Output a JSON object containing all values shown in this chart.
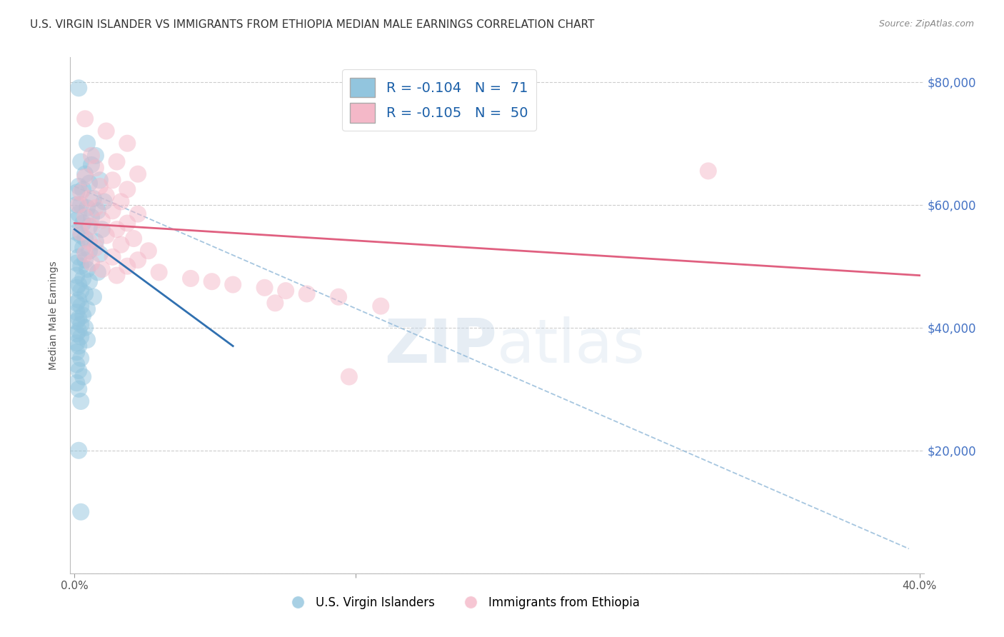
{
  "title": "U.S. VIRGIN ISLANDER VS IMMIGRANTS FROM ETHIOPIA MEDIAN MALE EARNINGS CORRELATION CHART",
  "source": "Source: ZipAtlas.com",
  "ylabel": "Median Male Earnings",
  "xlabel_ticks": [
    "0.0%",
    "",
    "40.0%"
  ],
  "xlabel_vals": [
    0.0,
    0.133,
    0.4
  ],
  "ylabel_ticks": [
    0,
    20000,
    40000,
    60000,
    80000
  ],
  "ylabel_labels": [
    "",
    "$20,000",
    "$40,000",
    "$60,000",
    "$80,000"
  ],
  "xlim": [
    -0.002,
    0.402
  ],
  "ylim": [
    0,
    84000
  ],
  "blue_R": "-0.104",
  "blue_N": "71",
  "pink_R": "-0.105",
  "pink_N": "50",
  "blue_color": "#92c5de",
  "pink_color": "#f4b8c8",
  "blue_line_color": "#3070b0",
  "pink_line_color": "#e06080",
  "dash_line_color": "#90b8d8",
  "blue_line": [
    [
      0.0,
      56000
    ],
    [
      0.075,
      37000
    ]
  ],
  "pink_line": [
    [
      0.0,
      57000
    ],
    [
      0.4,
      48500
    ]
  ],
  "dash_line": [
    [
      0.0,
      63000
    ],
    [
      0.395,
      4000
    ]
  ],
  "blue_scatter": [
    [
      0.002,
      79000
    ],
    [
      0.006,
      70000
    ],
    [
      0.01,
      68000
    ],
    [
      0.003,
      67000
    ],
    [
      0.008,
      66500
    ],
    [
      0.005,
      65000
    ],
    [
      0.012,
      64000
    ],
    [
      0.002,
      63000
    ],
    [
      0.007,
      63500
    ],
    [
      0.001,
      62000
    ],
    [
      0.004,
      62500
    ],
    [
      0.009,
      61000
    ],
    [
      0.014,
      60500
    ],
    [
      0.001,
      60000
    ],
    [
      0.003,
      60000
    ],
    [
      0.006,
      59500
    ],
    [
      0.011,
      59000
    ],
    [
      0.002,
      58500
    ],
    [
      0.008,
      58000
    ],
    [
      0.001,
      57500
    ],
    [
      0.004,
      57000
    ],
    [
      0.007,
      56500
    ],
    [
      0.013,
      56000
    ],
    [
      0.001,
      55500
    ],
    [
      0.003,
      55000
    ],
    [
      0.005,
      54500
    ],
    [
      0.01,
      54000
    ],
    [
      0.001,
      53500
    ],
    [
      0.004,
      53000
    ],
    [
      0.007,
      52500
    ],
    [
      0.012,
      52000
    ],
    [
      0.002,
      51500
    ],
    [
      0.005,
      51000
    ],
    [
      0.001,
      50500
    ],
    [
      0.003,
      50000
    ],
    [
      0.006,
      49500
    ],
    [
      0.011,
      49000
    ],
    [
      0.001,
      48500
    ],
    [
      0.004,
      48000
    ],
    [
      0.007,
      47500
    ],
    [
      0.002,
      47000
    ],
    [
      0.001,
      46500
    ],
    [
      0.003,
      46000
    ],
    [
      0.005,
      45500
    ],
    [
      0.009,
      45000
    ],
    [
      0.002,
      44500
    ],
    [
      0.001,
      44000
    ],
    [
      0.003,
      43500
    ],
    [
      0.006,
      43000
    ],
    [
      0.001,
      42500
    ],
    [
      0.004,
      42000
    ],
    [
      0.002,
      41500
    ],
    [
      0.001,
      41000
    ],
    [
      0.003,
      40500
    ],
    [
      0.005,
      40000
    ],
    [
      0.002,
      39500
    ],
    [
      0.001,
      39000
    ],
    [
      0.003,
      38500
    ],
    [
      0.006,
      38000
    ],
    [
      0.001,
      37500
    ],
    [
      0.002,
      37000
    ],
    [
      0.001,
      36000
    ],
    [
      0.003,
      35000
    ],
    [
      0.001,
      34000
    ],
    [
      0.002,
      33000
    ],
    [
      0.004,
      32000
    ],
    [
      0.001,
      31000
    ],
    [
      0.002,
      30000
    ],
    [
      0.003,
      28000
    ],
    [
      0.002,
      20000
    ],
    [
      0.003,
      10000
    ]
  ],
  "pink_scatter": [
    [
      0.005,
      74000
    ],
    [
      0.015,
      72000
    ],
    [
      0.025,
      70000
    ],
    [
      0.008,
      68000
    ],
    [
      0.02,
      67000
    ],
    [
      0.01,
      66000
    ],
    [
      0.03,
      65000
    ],
    [
      0.005,
      64500
    ],
    [
      0.018,
      64000
    ],
    [
      0.012,
      63000
    ],
    [
      0.025,
      62500
    ],
    [
      0.003,
      62000
    ],
    [
      0.015,
      61500
    ],
    [
      0.007,
      61000
    ],
    [
      0.022,
      60500
    ],
    [
      0.002,
      60000
    ],
    [
      0.01,
      59500
    ],
    [
      0.018,
      59000
    ],
    [
      0.03,
      58500
    ],
    [
      0.005,
      58000
    ],
    [
      0.013,
      57500
    ],
    [
      0.025,
      57000
    ],
    [
      0.008,
      56500
    ],
    [
      0.02,
      56000
    ],
    [
      0.003,
      55500
    ],
    [
      0.015,
      55000
    ],
    [
      0.028,
      54500
    ],
    [
      0.007,
      54000
    ],
    [
      0.022,
      53500
    ],
    [
      0.01,
      53000
    ],
    [
      0.035,
      52500
    ],
    [
      0.005,
      52000
    ],
    [
      0.018,
      51500
    ],
    [
      0.03,
      51000
    ],
    [
      0.008,
      50500
    ],
    [
      0.025,
      50000
    ],
    [
      0.013,
      49500
    ],
    [
      0.04,
      49000
    ],
    [
      0.02,
      48500
    ],
    [
      0.055,
      48000
    ],
    [
      0.065,
      47500
    ],
    [
      0.075,
      47000
    ],
    [
      0.09,
      46500
    ],
    [
      0.1,
      46000
    ],
    [
      0.11,
      45500
    ],
    [
      0.125,
      45000
    ],
    [
      0.095,
      44000
    ],
    [
      0.145,
      43500
    ],
    [
      0.3,
      65500
    ],
    [
      0.13,
      32000
    ]
  ],
  "watermark_zip": "ZIP",
  "watermark_atlas": "atlas",
  "grid_color": "#cccccc",
  "background_color": "#ffffff",
  "title_fontsize": 11,
  "axis_label_fontsize": 10,
  "tick_fontsize": 11
}
